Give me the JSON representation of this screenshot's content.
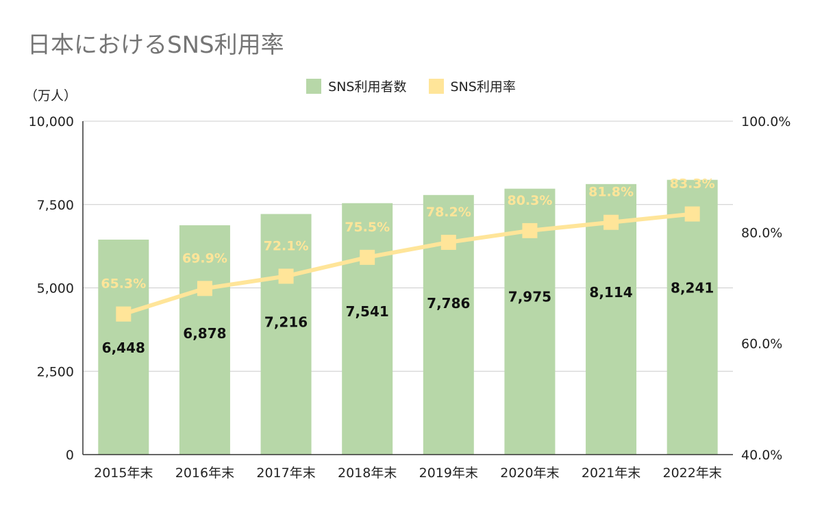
{
  "title": "日本におけるSNS利用率",
  "unit_label": "（万人）",
  "chart_data": {
    "type": "bar+line",
    "categories": [
      "2015年末",
      "2016年末",
      "2017年末",
      "2018年末",
      "2019年末",
      "2020年末",
      "2021年末",
      "2022年末"
    ],
    "series": [
      {
        "name": "SNS利用者数",
        "type": "bar",
        "axis": "left",
        "color": "#b7d7a8",
        "values": [
          6448,
          6878,
          7216,
          7541,
          7786,
          7975,
          8114,
          8241
        ],
        "labels": [
          "6,448",
          "6,878",
          "7,216",
          "7,541",
          "7,786",
          "7,975",
          "8,114",
          "8,241"
        ]
      },
      {
        "name": "SNS利用率",
        "type": "line",
        "axis": "right",
        "color": "#ffe599",
        "values": [
          65.3,
          69.9,
          72.1,
          75.5,
          78.2,
          80.3,
          81.8,
          83.3
        ],
        "labels": [
          "65.3%",
          "69.9%",
          "72.1%",
          "75.5%",
          "78.2%",
          "80.3%",
          "81.8%",
          "83.3%"
        ]
      }
    ],
    "left_axis": {
      "ylim": [
        0,
        10000
      ],
      "ticks": [
        "0",
        "2,500",
        "5,000",
        "7,500",
        "10,000"
      ]
    },
    "right_axis": {
      "ylim": [
        40,
        100
      ],
      "ticks": [
        "40.0%",
        "60.0%",
        "80.0%",
        "100.0%"
      ]
    },
    "grid": true,
    "legend": "top-center"
  }
}
